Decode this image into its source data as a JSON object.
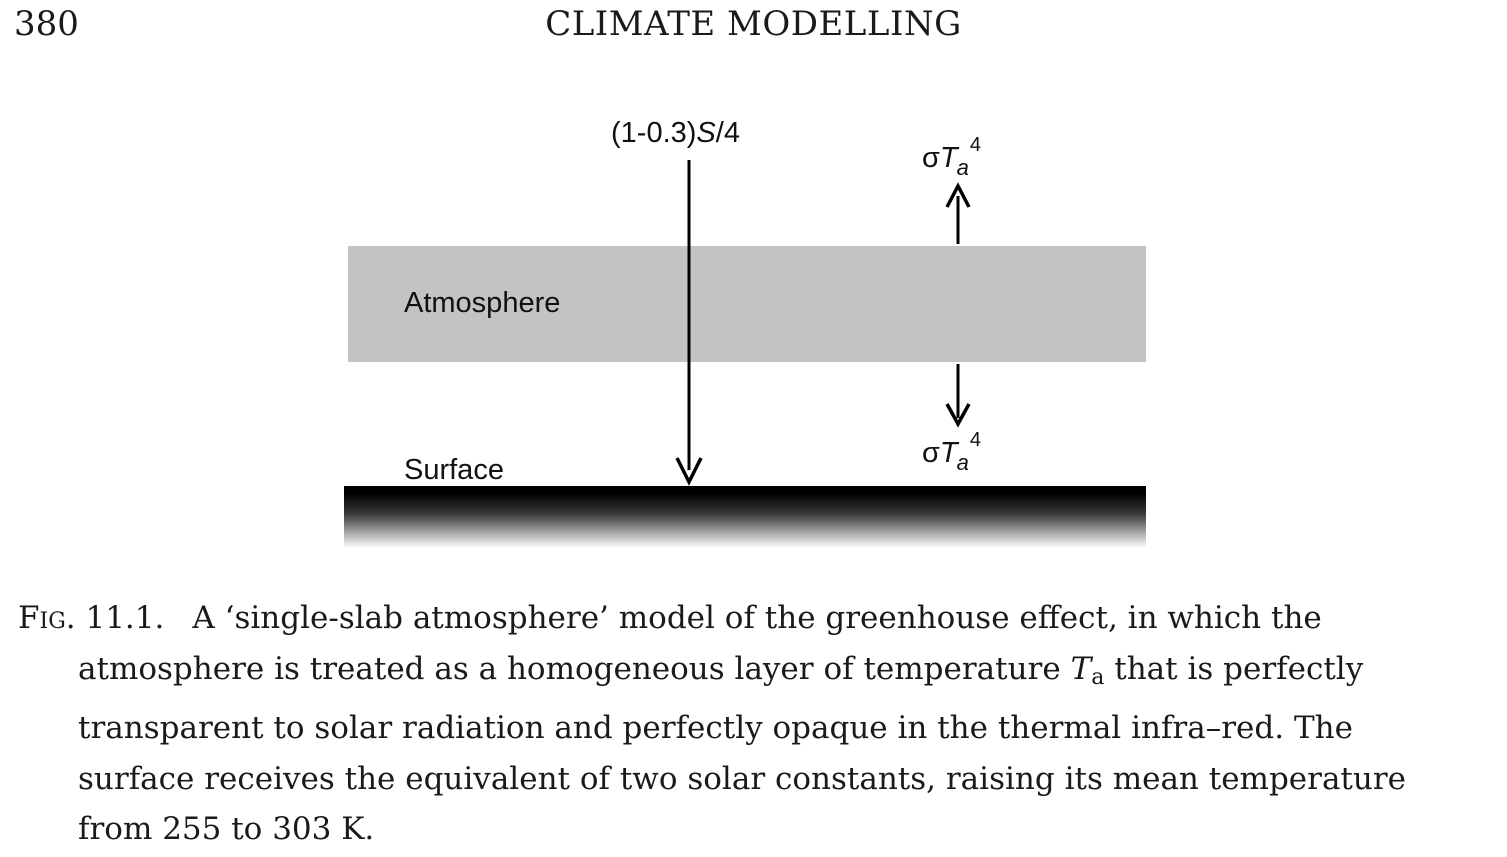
{
  "header": {
    "page_number": "380",
    "running_head": "CLIMATE MODELLING"
  },
  "figure": {
    "incoming_label_prefix": "(1-0.3)",
    "incoming_label_var": "S",
    "incoming_label_suffix": "/4",
    "sigma": "σ",
    "T": "T",
    "sub_a": "a",
    "sup_4": "4",
    "atmosphere_label": "Atmosphere",
    "surface_label": "Surface",
    "colors": {
      "slab": "#c3c3c3",
      "surface": "#000000",
      "arrow": "#000000"
    }
  },
  "caption": {
    "fig_label": "Fig. 11.1.",
    "line1": "A ‘single-slab atmosphere’ model of the greenhouse effect, in which the",
    "line2_pre": "atmosphere is treated as a homogeneous layer of temperature ",
    "line2_var": "T",
    "line2_sub": "a",
    "line2_post": " that is perfectly",
    "line3": "transparent to solar radiation and perfectly opaque in the thermal infra–red. The",
    "line4": "surface receives the equivalent of two solar constants, raising its mean temperature",
    "line5": "from 255 to 303 K."
  }
}
